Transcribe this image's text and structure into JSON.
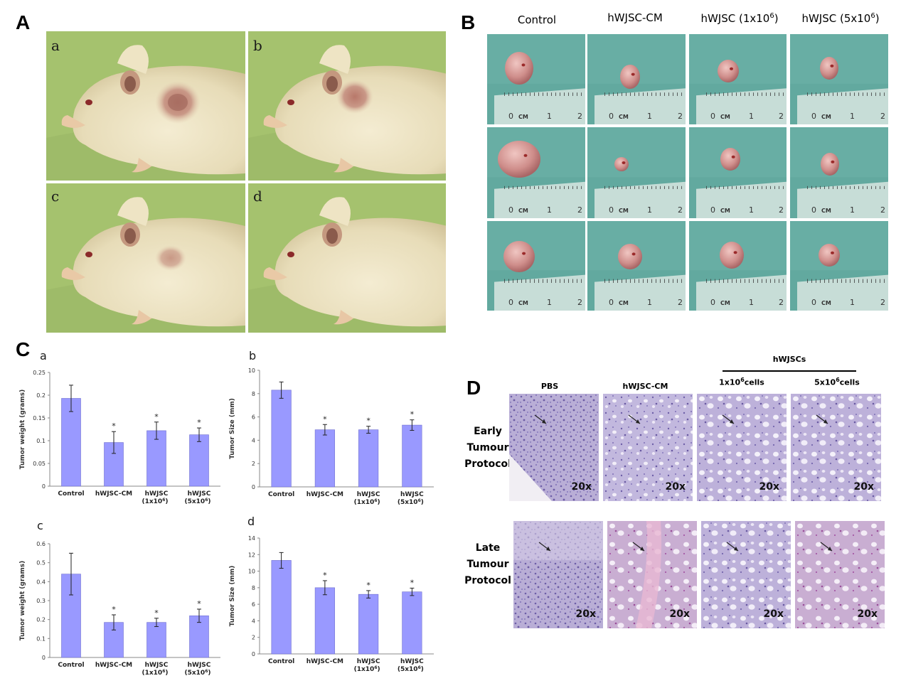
{
  "panels": {
    "A": {
      "label": "A",
      "sub_labels": [
        "a",
        "b",
        "c",
        "d"
      ]
    },
    "B": {
      "label": "B",
      "columns": [
        "Control",
        "hWJSC-CM",
        "hWJSC (1x10",
        "hWJSC (5x10"
      ],
      "column_sup": [
        "",
        "",
        "6",
        "6"
      ],
      "column_close": [
        "",
        "",
        ")",
        ")"
      ],
      "ruler_text": [
        "0",
        "CM",
        "1",
        "2"
      ]
    },
    "C": {
      "label": "C",
      "sub_labels": [
        "a",
        "b",
        "c",
        "d"
      ]
    },
    "D": {
      "label": "D",
      "group_header": "hWJSCs",
      "columns": [
        {
          "main": "PBS",
          "sup": "",
          "rest": ""
        },
        {
          "main": "hWJSC-CM",
          "sup": "",
          "rest": ""
        },
        {
          "main": "1x10",
          "sup": "6",
          "rest": "cells"
        },
        {
          "main": "5x10",
          "sup": "6",
          "rest": "cells"
        }
      ],
      "rows": [
        [
          "Early",
          "Tumour",
          "Protocol"
        ],
        [
          "Late",
          "Tumour",
          "Protocol"
        ]
      ],
      "magnification": "20x"
    }
  },
  "chart_data": [
    {
      "type": "bar",
      "panel": "C-a",
      "ylabel": "Tumor weight (grams)",
      "ylim": [
        0,
        0.25
      ],
      "yticks": [
        "0",
        "0.05",
        "0.1",
        "0.15",
        "0.2",
        "0.25"
      ],
      "categories": [
        [
          "Control"
        ],
        [
          "hWJSC-CM"
        ],
        [
          "hWJSC",
          "(1x10",
          "6",
          ")"
        ],
        [
          "hWJSC",
          "(5x10",
          "6",
          ")"
        ]
      ],
      "values": [
        0.193,
        0.096,
        0.122,
        0.113
      ],
      "errors": [
        0.029,
        0.024,
        0.019,
        0.015
      ],
      "significance": [
        "",
        "*",
        "*",
        "*"
      ],
      "bar_color": "#9999ff"
    },
    {
      "type": "bar",
      "panel": "C-b",
      "ylabel": "Tumor Size (mm)",
      "ylim": [
        0,
        10
      ],
      "yticks": [
        "0",
        "2",
        "4",
        "6",
        "8",
        "10"
      ],
      "categories": [
        [
          "Control"
        ],
        [
          "hWJSC-CM"
        ],
        [
          "hWJSC",
          "(1x10",
          "6",
          ")"
        ],
        [
          "hWJSC",
          "(5x10",
          "6",
          ")"
        ]
      ],
      "values": [
        8.3,
        4.9,
        4.9,
        5.3
      ],
      "errors": [
        0.7,
        0.45,
        0.3,
        0.45
      ],
      "significance": [
        "",
        "*",
        "*",
        "*"
      ],
      "bar_color": "#9999ff"
    },
    {
      "type": "bar",
      "panel": "C-c",
      "ylabel": "Tumor weight (grams)",
      "ylim": [
        0,
        0.6
      ],
      "yticks": [
        "0",
        "0.1",
        "0.2",
        "0.3",
        "0.4",
        "0.5",
        "0.6"
      ],
      "categories": [
        [
          "Control"
        ],
        [
          "hWJSC-CM"
        ],
        [
          "hWJSC",
          "(1x10",
          "6",
          ")"
        ],
        [
          "hWJSC",
          "(5x10",
          "6",
          ")"
        ]
      ],
      "values": [
        0.44,
        0.185,
        0.185,
        0.22
      ],
      "errors": [
        0.11,
        0.04,
        0.022,
        0.035
      ],
      "significance": [
        "",
        "*",
        "*",
        "*"
      ],
      "bar_color": "#9999ff"
    },
    {
      "type": "bar",
      "panel": "C-d",
      "ylabel": "Tumor Size (mm)",
      "ylim": [
        0,
        14
      ],
      "yticks": [
        "0",
        "2",
        "4",
        "6",
        "8",
        "10",
        "12",
        "14"
      ],
      "categories": [
        [
          "Control"
        ],
        [
          "hWJSC-CM"
        ],
        [
          "hWJSC",
          "(1x10",
          "6",
          ")"
        ],
        [
          "hWJSC",
          "(5x10",
          "6",
          ")"
        ]
      ],
      "values": [
        11.3,
        8.0,
        7.2,
        7.5
      ],
      "errors": [
        0.95,
        0.85,
        0.45,
        0.45
      ],
      "significance": [
        "",
        "*",
        "*",
        "*"
      ],
      "bar_color": "#9999ff"
    }
  ]
}
